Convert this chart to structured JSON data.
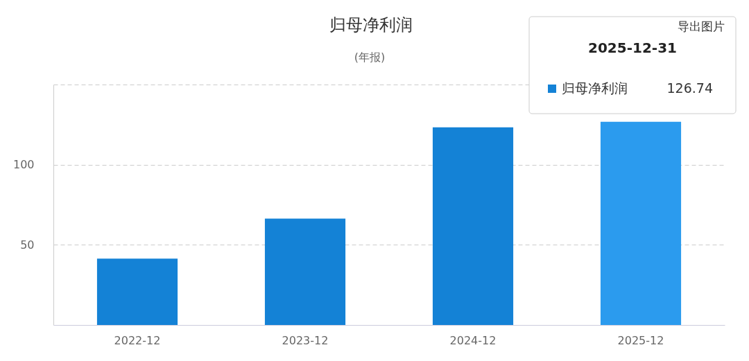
{
  "chart_data": {
    "type": "bar",
    "title": "归母净利润",
    "subtitle": "(年报)",
    "categories": [
      "2022-12",
      "2023-12",
      "2024-12",
      "2025-12"
    ],
    "series": [
      {
        "name": "归母净利润",
        "colors": [
          "#1482d6",
          "#1482d6",
          "#1482d6",
          "#2b9bee"
        ],
        "values": [
          41.4,
          66.4,
          123.3,
          126.74
        ],
        "value_labels": [
          null,
          null,
          null,
          "126.74"
        ]
      }
    ],
    "ylim": [
      0,
      150
    ],
    "yticks": [
      50,
      100,
      {
        "value": 150,
        "label": null
      }
    ],
    "grid": "y",
    "annotations": [
      "导出图片",
      "2025-12-31"
    ]
  }
}
